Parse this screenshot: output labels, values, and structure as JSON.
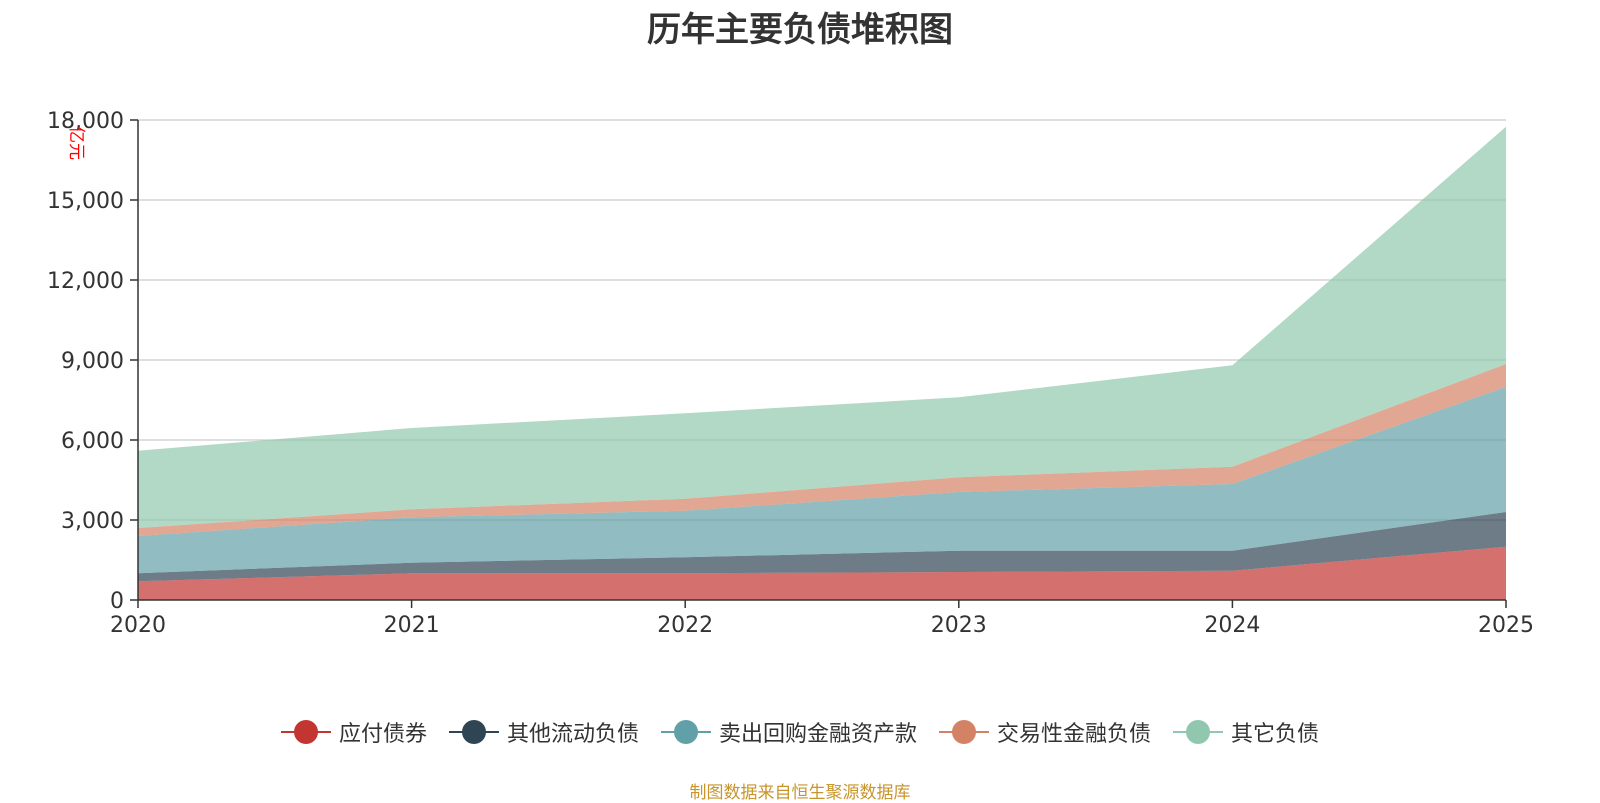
{
  "chart_data": {
    "type": "area",
    "stacked": true,
    "title": "历年主要负债堆积图",
    "ylabel": "亿元",
    "xlabel": "",
    "x": [
      "2020",
      "2021",
      "2022",
      "2023",
      "2024",
      "2025"
    ],
    "ylim": [
      0,
      18000
    ],
    "yticks": [
      0,
      3000,
      6000,
      9000,
      12000,
      15000,
      18000
    ],
    "ytick_labels": [
      "0",
      "3,000",
      "6,000",
      "9,000",
      "12,000",
      "15,000",
      "18,000"
    ],
    "grid": true,
    "legend_position": "bottom-center",
    "series": [
      {
        "name": "应付债券",
        "color": "#c23531",
        "values": [
          700,
          1000,
          1000,
          1050,
          1100,
          2000
        ]
      },
      {
        "name": "其他流动负债",
        "color": "#2f4554",
        "values": [
          300,
          400,
          600,
          800,
          750,
          1300
        ]
      },
      {
        "name": "卖出回购金融资产款",
        "color": "#61a0a8",
        "values": [
          1400,
          1700,
          1750,
          2200,
          2500,
          4700
        ]
      },
      {
        "name": "交易性金融负债",
        "color": "#d48265",
        "values": [
          300,
          300,
          450,
          550,
          650,
          850
        ]
      },
      {
        "name": "其它负债",
        "color": "#91c7ae",
        "values": [
          2900,
          3050,
          3200,
          3000,
          3800,
          8900
        ]
      }
    ]
  },
  "source_note": "制图数据来自恒生聚源数据库"
}
